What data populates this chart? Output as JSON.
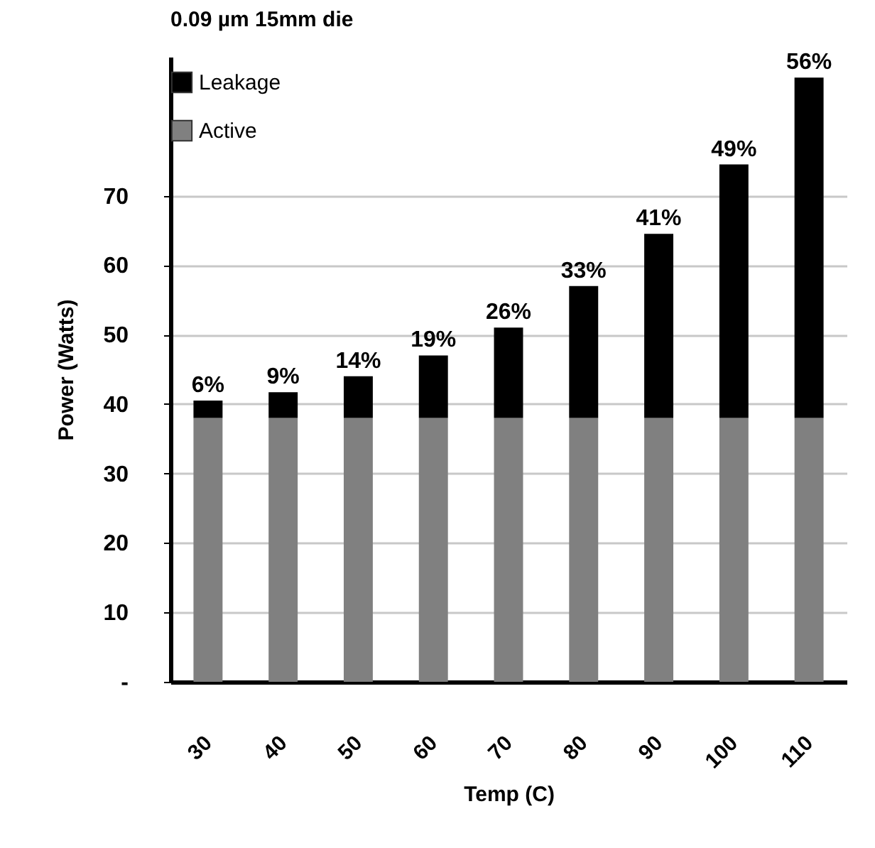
{
  "chart_data": {
    "type": "bar",
    "title": "0.09 µm 15mm die",
    "xlabel": "Temp (C)",
    "ylabel": "Power (Watts)",
    "categories": [
      "30",
      "40",
      "50",
      "60",
      "70",
      "80",
      "90",
      "100",
      "110"
    ],
    "stacked": true,
    "series": [
      {
        "name": "Active",
        "color": "#808080",
        "values": [
          38,
          38,
          38,
          38,
          38,
          38,
          38,
          38,
          38
        ]
      },
      {
        "name": "Leakage",
        "color": "#000000",
        "values": [
          2.5,
          3.7,
          6,
          9,
          13,
          19,
          26.5,
          36.5,
          49
        ]
      }
    ],
    "annotations": [
      {
        "text": "6%",
        "x": "30",
        "y": 40.5
      },
      {
        "text": "9%",
        "x": "40",
        "y": 41.7
      },
      {
        "text": "14%",
        "x": "50",
        "y": 44
      },
      {
        "text": "19%",
        "x": "60",
        "y": 47
      },
      {
        "text": "26%",
        "x": "70",
        "y": 51
      },
      {
        "text": "33%",
        "x": "80",
        "y": 57
      },
      {
        "text": "41%",
        "x": "90",
        "y": 64.5
      },
      {
        "text": "49%",
        "x": "100",
        "y": 74.5
      },
      {
        "text": "56%",
        "x": "110",
        "y": 87
      }
    ],
    "ylim": [
      0,
      90
    ],
    "yticks": [
      {
        "value": 0,
        "label": "-"
      },
      10,
      20,
      30,
      40,
      50,
      60,
      70
    ],
    "grid": "y",
    "legend": "top left"
  }
}
